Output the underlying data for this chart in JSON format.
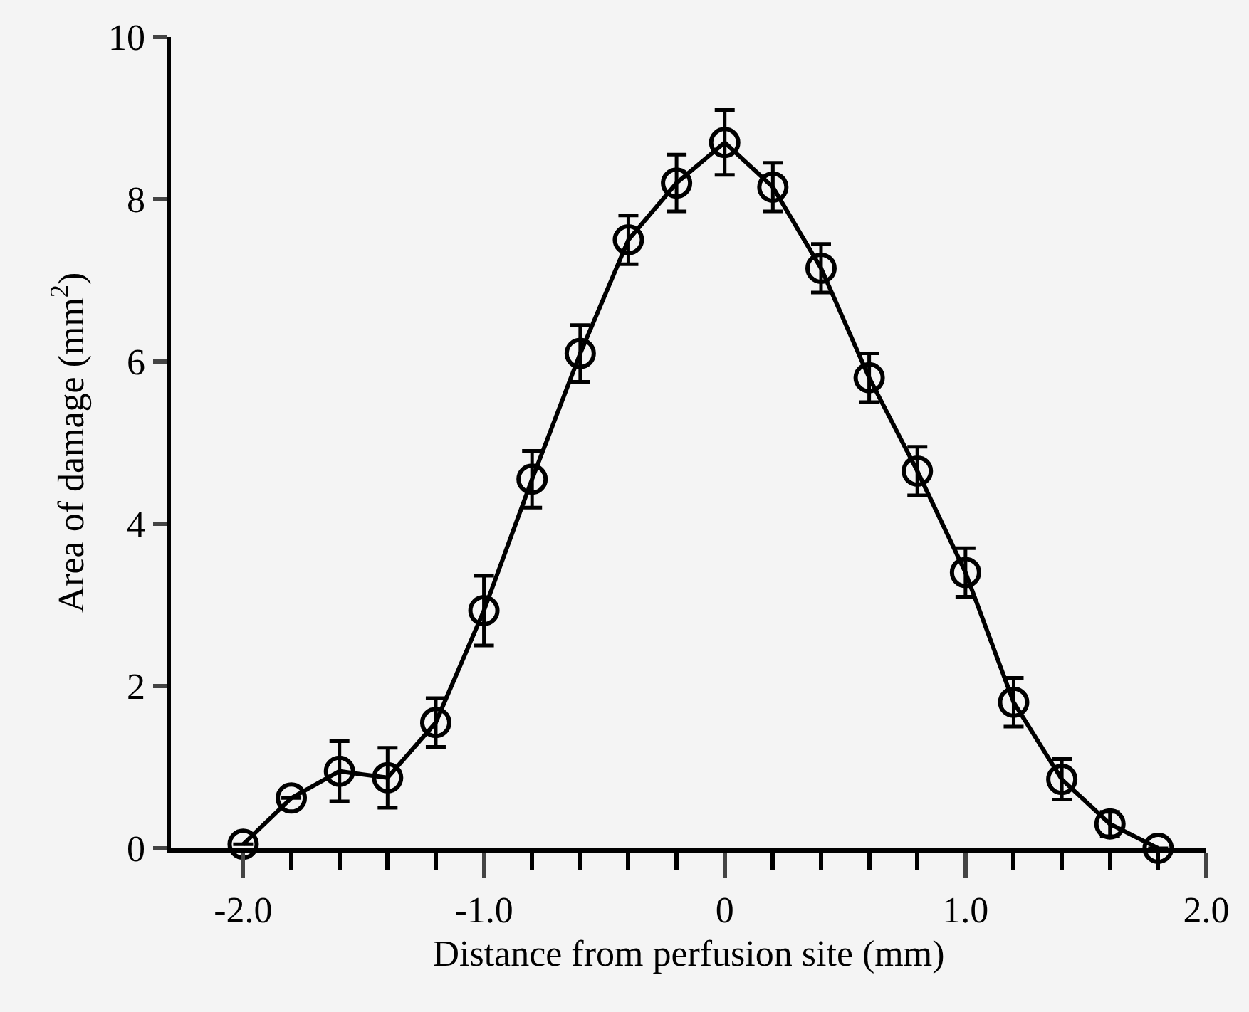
{
  "chart_data": {
    "type": "line",
    "xlabel": "Distance from perfusion site (mm)",
    "ylabel": "Area of damage (mm$^{2}$)",
    "x": [
      -2.0,
      -1.8,
      -1.6,
      -1.4,
      -1.2,
      -1.0,
      -0.8,
      -0.6,
      -0.4,
      -0.2,
      0,
      0.2,
      0.4,
      0.6,
      0.8,
      1.0,
      1.2,
      1.4,
      1.6,
      1.8
    ],
    "series": [
      {
        "color": "#000000",
        "values": [
          0.05,
          0.62,
          0.95,
          0.87,
          1.55,
          2.93,
          4.55,
          6.1,
          7.5,
          8.2,
          8.7,
          8.15,
          7.15,
          5.8,
          4.65,
          3.4,
          1.8,
          0.85,
          0.3,
          0.0
        ],
        "errors": [
          null,
          null,
          0.37,
          0.37,
          0.3,
          0.43,
          0.35,
          0.35,
          0.3,
          0.35,
          0.4,
          0.3,
          0.3,
          0.3,
          0.3,
          0.3,
          0.3,
          0.25,
          0.15,
          null
        ]
      }
    ],
    "xlim": [
      -2.3,
      2.0
    ],
    "xticks": [
      {
        "value": -2.0,
        "label": "-2.0"
      },
      {
        "value": -1.8,
        "label": null
      },
      {
        "value": -1.6,
        "label": null
      },
      {
        "value": -1.4,
        "label": null
      },
      {
        "value": -1.2,
        "label": null
      },
      {
        "value": -1.0,
        "label": "-1.0"
      },
      {
        "value": -0.8,
        "label": null
      },
      {
        "value": -0.6,
        "label": null
      },
      {
        "value": -0.4,
        "label": null
      },
      {
        "value": -0.2,
        "label": null
      },
      0,
      {
        "value": 0.2,
        "label": null
      },
      {
        "value": 0.4,
        "label": null
      },
      {
        "value": 0.6,
        "label": null
      },
      {
        "value": 0.8,
        "label": null
      },
      {
        "value": 1.0,
        "label": "1.0"
      },
      {
        "value": 1.2,
        "label": null
      },
      {
        "value": 1.4,
        "label": null
      },
      {
        "value": 1.6,
        "label": null
      },
      {
        "value": 1.8,
        "label": null
      },
      {
        "value": 2.0,
        "label": "2.0"
      }
    ],
    "ylim": [
      0,
      10
    ],
    "yticks": [
      0,
      2,
      4,
      6,
      8,
      10
    ],
    "grid": false,
    "marker": "circle",
    "line_style": "solid"
  }
}
